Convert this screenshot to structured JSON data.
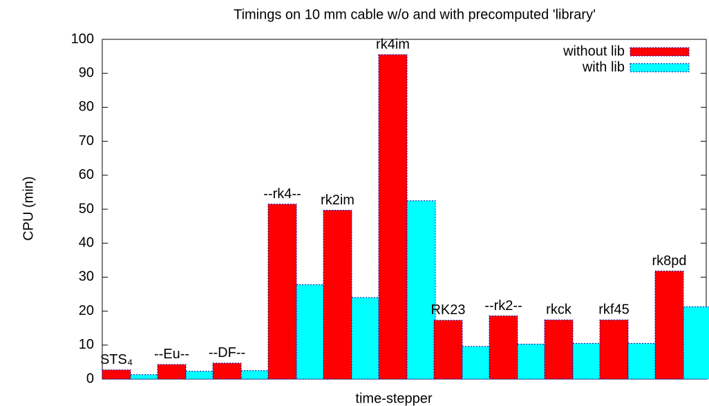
{
  "chart_data": {
    "type": "bar",
    "title": "Timings on 10 mm cable w/o and with precomputed 'library'",
    "x_label": "time-stepper",
    "y_label": "CPU (min)",
    "categories": [
      "STS₄",
      "--Eu--",
      "--DF--",
      "--rk4--",
      "rk2im",
      "rk4im",
      "RK23",
      "--rk2--",
      "rkck",
      "rkf45",
      "rk8pd"
    ],
    "series": [
      {
        "name": "without lib",
        "color": "#ff0000",
        "values": [
          2.7,
          4.3,
          4.7,
          51.5,
          49.7,
          95.5,
          17.3,
          18.6,
          17.4,
          17.4,
          31.8
        ]
      },
      {
        "name": "with lib",
        "color": "#00ffff",
        "values": [
          1.3,
          2.3,
          2.5,
          27.8,
          24,
          52.5,
          9.6,
          10.3,
          10.5,
          10.5,
          21.3
        ]
      }
    ],
    "ylim": [
      0,
      100
    ],
    "yticks": [
      0,
      10,
      20,
      30,
      40,
      50,
      60,
      70,
      80,
      90,
      100
    ],
    "legend": "top-right"
  }
}
